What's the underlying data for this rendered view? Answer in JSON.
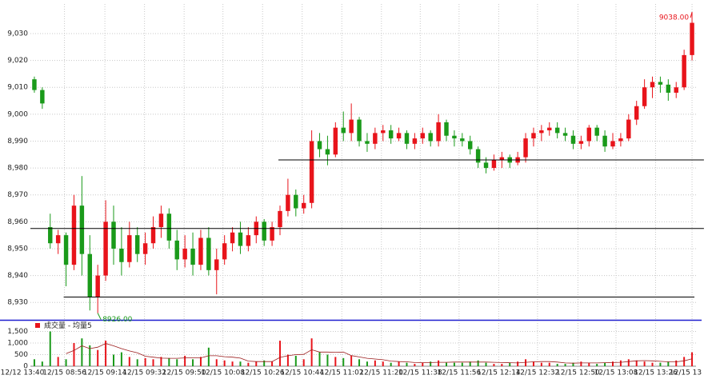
{
  "chart_data": {
    "type": "candlestick",
    "up_color": "#e8141b",
    "down_color": "#1a9a1a",
    "grid": true,
    "ylim": [
      8925,
      9041
    ],
    "yticks": [
      {
        "value": 8930,
        "label": "8,930"
      },
      {
        "value": 8940,
        "label": "8,940"
      },
      {
        "value": 8950,
        "label": "8,950"
      },
      {
        "value": 8960,
        "label": "8,960"
      },
      {
        "value": 8970,
        "label": "8,970"
      },
      {
        "value": 8980,
        "label": "8,980"
      },
      {
        "value": 8990,
        "label": "8,990"
      },
      {
        "value": 9000,
        "label": "9,000"
      },
      {
        "value": 9010,
        "label": "9,010"
      },
      {
        "value": 9020,
        "label": "9,020"
      },
      {
        "value": 9030,
        "label": "9,030"
      }
    ],
    "xlim": [
      -0.5,
      83.5
    ],
    "xticks": [
      {
        "value": -2.3,
        "label": "12/12 13:40"
      },
      {
        "value": 3.8,
        "label": "12/15 08:56"
      },
      {
        "value": 8.9,
        "label": "12/15 09:14"
      },
      {
        "value": 13.9,
        "label": "12/15 09:32"
      },
      {
        "value": 18.9,
        "label": "12/15 09:50"
      },
      {
        "value": 23.8,
        "label": "12/15 10:08"
      },
      {
        "value": 28.8,
        "label": "12/15 10:26"
      },
      {
        "value": 33.8,
        "label": "12/15 10:44"
      },
      {
        "value": 38.8,
        "label": "12/15 11:02"
      },
      {
        "value": 43.8,
        "label": "12/15 11:20"
      },
      {
        "value": 48.7,
        "label": "12/15 11:38"
      },
      {
        "value": 53.6,
        "label": "12/15 11:56"
      },
      {
        "value": 58.6,
        "label": "12/15 12:14"
      },
      {
        "value": 63.5,
        "label": "12/15 12:32"
      },
      {
        "value": 68.6,
        "label": "12/15 12:50"
      },
      {
        "value": 73.4,
        "label": "12/15 13:08"
      },
      {
        "value": 78.4,
        "label": "12/15 13:26"
      },
      {
        "value": 83,
        "label": "12/15 13"
      }
    ],
    "candles": [
      [
        9013,
        9014,
        9008,
        9009
      ],
      [
        9009,
        9010,
        9002,
        9004
      ],
      [
        8958,
        8963,
        8950,
        8952
      ],
      [
        8952,
        8957,
        8948,
        8955
      ],
      [
        8955,
        8956,
        8936,
        8944
      ],
      [
        8944,
        8970,
        8942,
        8966
      ],
      [
        8966,
        8977,
        8940,
        8948
      ],
      [
        8948,
        8955,
        8927,
        8932
      ],
      [
        8932,
        8944,
        8926,
        8940
      ],
      [
        8940,
        8968,
        8938,
        8960
      ],
      [
        8960,
        8966,
        8944,
        8950
      ],
      [
        8950,
        8958,
        8940,
        8945
      ],
      [
        8945,
        8960,
        8943,
        8955
      ],
      [
        8955,
        8958,
        8945,
        8948
      ],
      [
        8948,
        8956,
        8944,
        8952
      ],
      [
        8952,
        8962,
        8950,
        8958
      ],
      [
        8958,
        8966,
        8954,
        8963
      ],
      [
        8963,
        8965,
        8950,
        8953
      ],
      [
        8953,
        8957,
        8942,
        8946
      ],
      [
        8946,
        8955,
        8943,
        8950
      ],
      [
        8950,
        8956,
        8940,
        8944
      ],
      [
        8944,
        8957,
        8942,
        8954
      ],
      [
        8954,
        8958,
        8940,
        8942
      ],
      [
        8942,
        8950,
        8933,
        8946
      ],
      [
        8946,
        8955,
        8944,
        8952
      ],
      [
        8952,
        8958,
        8949,
        8956
      ],
      [
        8956,
        8960,
        8948,
        8951
      ],
      [
        8951,
        8958,
        8949,
        8955
      ],
      [
        8955,
        8962,
        8952,
        8960
      ],
      [
        8960,
        8961,
        8951,
        8953
      ],
      [
        8953,
        8960,
        8951,
        8958
      ],
      [
        8958,
        8966,
        8955,
        8964
      ],
      [
        8964,
        8976,
        8962,
        8970
      ],
      [
        8970,
        8972,
        8962,
        8965
      ],
      [
        8965,
        8970,
        8963,
        8967
      ],
      [
        8967,
        8994,
        8965,
        8990
      ],
      [
        8990,
        8993,
        8984,
        8987
      ],
      [
        8987,
        8992,
        8981,
        8985
      ],
      [
        8985,
        8997,
        8984,
        8995
      ],
      [
        8995,
        9001,
        8990,
        8993
      ],
      [
        8993,
        9004,
        8990,
        8998
      ],
      [
        8998,
        8999,
        8988,
        8990
      ],
      [
        8990,
        8993,
        8986,
        8989
      ],
      [
        8989,
        8995,
        8987,
        8993
      ],
      [
        8993,
        8996,
        8990,
        8994
      ],
      [
        8994,
        8996,
        8989,
        8991
      ],
      [
        8991,
        8995,
        8990,
        8993
      ],
      [
        8993,
        8994,
        8987,
        8989
      ],
      [
        8989,
        8993,
        8987,
        8991
      ],
      [
        8991,
        8995,
        8989,
        8993
      ],
      [
        8993,
        8994,
        8988,
        8990
      ],
      [
        8990,
        9000,
        8988,
        8997
      ],
      [
        8997,
        8998,
        8990,
        8992
      ],
      [
        8992,
        8994,
        8988,
        8991
      ],
      [
        8991,
        8993,
        8988,
        8990
      ],
      [
        8990,
        8992,
        8985,
        8987
      ],
      [
        8987,
        8988,
        8980,
        8982
      ],
      [
        8982,
        8984,
        8978,
        8980
      ],
      [
        8980,
        8985,
        8979,
        8983
      ],
      [
        8983,
        8986,
        8980,
        8984
      ],
      [
        8984,
        8985,
        8980,
        8982
      ],
      [
        8982,
        8986,
        8981,
        8984
      ],
      [
        8984,
        8993,
        8982,
        8991
      ],
      [
        8991,
        8995,
        8988,
        8993
      ],
      [
        8993,
        8996,
        8990,
        8994
      ],
      [
        8994,
        8997,
        8992,
        8995
      ],
      [
        8995,
        8997,
        8991,
        8993
      ],
      [
        8993,
        8995,
        8990,
        8992
      ],
      [
        8992,
        8994,
        8987,
        8989
      ],
      [
        8989,
        8992,
        8987,
        8990
      ],
      [
        8990,
        8996,
        8988,
        8995
      ],
      [
        8995,
        8996,
        8990,
        8992
      ],
      [
        8992,
        8994,
        8986,
        8988
      ],
      [
        8988,
        8993,
        8987,
        8990
      ],
      [
        8990,
        8993,
        8988,
        8991
      ],
      [
        8991,
        9000,
        8990,
        8998
      ],
      [
        8998,
        9005,
        8996,
        9003
      ],
      [
        9003,
        9013,
        9002,
        9010
      ],
      [
        9010,
        9014,
        9006,
        9012
      ],
      [
        9012,
        9014,
        9008,
        9011
      ],
      [
        9011,
        9013,
        9005,
        9008
      ],
      [
        9008,
        9012,
        9006,
        9010
      ],
      [
        9010,
        9024,
        9009,
        9022
      ],
      [
        9022,
        9038,
        9020,
        9034
      ]
    ],
    "hlines": [
      {
        "value": 8983,
        "x": [
          30.8,
          84.5
        ]
      },
      {
        "value": 8957.5,
        "x": [
          -0.5,
          84.5
        ]
      },
      {
        "value": 8932,
        "x": [
          3.7,
          83.3
        ]
      }
    ],
    "annotations": [
      {
        "value": 9038,
        "label": "9038.00",
        "x": 83,
        "color": "#e8141b"
      },
      {
        "value": 8926,
        "label": "8926.00",
        "x": 8,
        "color": "#1a9a1a"
      }
    ],
    "volume": {
      "title": "成交量 - 均量5",
      "ylim": [
        0,
        2000
      ],
      "yticks": [
        0,
        500,
        {
          "value": 1000,
          "label": "1,000"
        },
        {
          "value": 1500,
          "label": "1,500"
        }
      ],
      "ma_color": "#9b1c1c",
      "values": [
        300,
        200,
        1500,
        400,
        300,
        1000,
        1200,
        900,
        700,
        1100,
        500,
        600,
        400,
        300,
        350,
        300,
        400,
        350,
        300,
        450,
        300,
        400,
        800,
        300,
        250,
        200,
        200,
        150,
        200,
        250,
        200,
        1100,
        500,
        450,
        300,
        1200,
        600,
        500,
        400,
        350,
        450,
        300,
        200,
        250,
        200,
        150,
        200,
        150,
        100,
        150,
        200,
        250,
        150,
        150,
        150,
        200,
        250,
        150,
        100,
        100,
        150,
        200,
        300,
        200,
        150,
        150,
        100,
        100,
        150,
        200,
        150,
        100,
        150,
        200,
        250,
        300,
        250,
        200,
        150,
        150,
        200,
        250,
        400,
        600
      ],
      "ma5": [
        null,
        null,
        null,
        null,
        540,
        680,
        880,
        760,
        820,
        980,
        880,
        760,
        660,
        580,
        430,
        390,
        350,
        340,
        340,
        360,
        360,
        360,
        450,
        450,
        410,
        390,
        350,
        220,
        200,
        200,
        200,
        380,
        450,
        500,
        510,
        710,
        610,
        610,
        600,
        610,
        460,
        400,
        340,
        310,
        280,
        220,
        200,
        190,
        160,
        150,
        160,
        170,
        170,
        180,
        180,
        180,
        180,
        180,
        170,
        160,
        150,
        140,
        170,
        190,
        200,
        200,
        180,
        140,
        130,
        140,
        140,
        140,
        150,
        160,
        170,
        200,
        230,
        240,
        230,
        210,
        190,
        190,
        230,
        320
      ]
    }
  }
}
